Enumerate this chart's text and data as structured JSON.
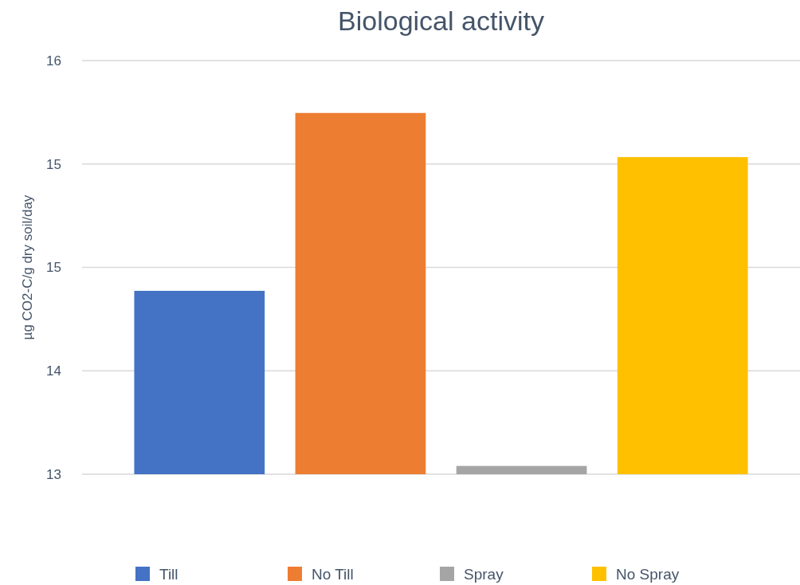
{
  "chart_data": {
    "type": "bar",
    "title": "Biological activity",
    "ylabel": "µg CO2-C/g dry soil/day",
    "categories": [
      null
    ],
    "series": [
      {
        "name": "Till",
        "color": "#4472c4",
        "values": [
          14.33
        ]
      },
      {
        "name": "No Till",
        "color": "#ed7d31",
        "values": [
          15.62
        ]
      },
      {
        "name": "Spray",
        "color": "#a5a5a5",
        "values": [
          13.06
        ]
      },
      {
        "name": "No Spray",
        "color": "#ffc000",
        "values": [
          15.3
        ]
      }
    ],
    "ylim": [
      13,
      16
    ],
    "yticks": [
      {
        "value": 13,
        "label": "13"
      },
      {
        "value": 13.75,
        "label": "14"
      },
      {
        "value": 14.5,
        "label": "15"
      },
      {
        "value": 15.25,
        "label": "15"
      },
      {
        "value": 16,
        "label": "16"
      }
    ],
    "grid": "y",
    "legend": "bottom"
  }
}
